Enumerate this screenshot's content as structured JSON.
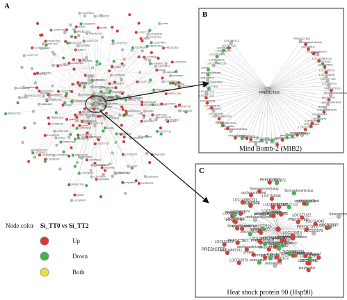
{
  "panels": {
    "a": {
      "letter": "A"
    },
    "b": {
      "letter": "B",
      "caption": "Mind Bomb-2 (MIB2)",
      "center_label": "PREDICTED:"
    },
    "c": {
      "letter": "C",
      "caption": "Heat shock protein 90 (Hsp90)",
      "center_label": "PREDICTED:"
    }
  },
  "node_labels": [
    "PREDICTED:",
    "Strongylocentrotus",
    "purpuratus",
    "uncharacterized",
    "protein",
    "LOC100887231",
    "LOC576414",
    "LOC592872",
    "LOC592979",
    "LOC754046",
    "LOC577122",
    "LOC580712"
  ],
  "legend": {
    "title": "Node color",
    "comparison": "Si_TT0 vs Si_TT2",
    "items": [
      {
        "label": "Up",
        "color": "#d93a35"
      },
      {
        "label": "Down",
        "color": "#3fb54a"
      },
      {
        "label": "Both",
        "color": "#e8e23c"
      }
    ]
  },
  "colors": {
    "up": "#d93a35",
    "down": "#3fb54a",
    "neutral": "#b9b9b9",
    "edge": "#9a9a9a"
  }
}
